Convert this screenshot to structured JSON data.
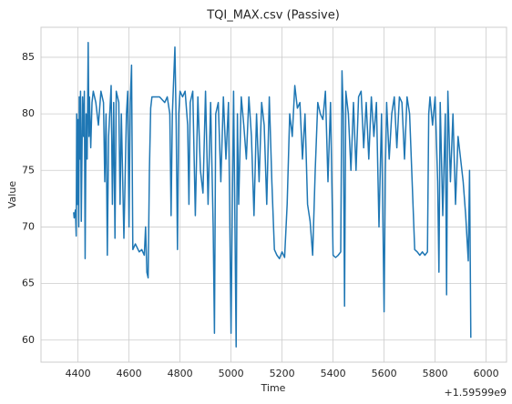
{
  "chart_data": {
    "type": "line",
    "title": "TQI_MAX.csv (Passive)",
    "x_label": "Time",
    "y_label": "Value",
    "x_offset_label": "+1.59599e9",
    "xlim": [
      4255,
      6080
    ],
    "ylim": [
      58.05,
      87.65
    ],
    "xticks": [
      4400,
      4600,
      4800,
      5000,
      5200,
      5400,
      5600,
      5800,
      6000
    ],
    "yticks": [
      60,
      65,
      70,
      75,
      80,
      85
    ],
    "grid": true,
    "x": [
      4383,
      4385,
      4390,
      4393,
      4395,
      4398,
      4400,
      4403,
      4405,
      4408,
      4410,
      4413,
      4418,
      4422,
      4425,
      4428,
      4432,
      4436,
      4440,
      4443,
      4445,
      4450,
      4455,
      4460,
      4470,
      4480,
      4490,
      4500,
      4505,
      4510,
      4515,
      4520,
      4530,
      4535,
      4540,
      4545,
      4550,
      4560,
      4565,
      4570,
      4580,
      4590,
      4595,
      4600,
      4605,
      4610,
      4615,
      4625,
      4640,
      4650,
      4660,
      4665,
      4670,
      4675,
      4680,
      4685,
      4690,
      4700,
      4720,
      4740,
      4750,
      4760,
      4765,
      4770,
      4780,
      4785,
      4790,
      4795,
      4800,
      4810,
      4820,
      4830,
      4835,
      4840,
      4850,
      4860,
      4870,
      4880,
      4890,
      4900,
      4910,
      4920,
      4930,
      4935,
      4940,
      4950,
      4960,
      4970,
      4980,
      4990,
      5000,
      5005,
      5010,
      5015,
      5020,
      5025,
      5030,
      5040,
      5050,
      5060,
      5070,
      5080,
      5090,
      5100,
      5110,
      5120,
      5130,
      5140,
      5150,
      5160,
      5170,
      5180,
      5190,
      5200,
      5210,
      5220,
      5230,
      5240,
      5250,
      5260,
      5270,
      5280,
      5290,
      5300,
      5310,
      5315,
      5320,
      5330,
      5340,
      5350,
      5360,
      5370,
      5380,
      5390,
      5400,
      5410,
      5420,
      5430,
      5435,
      5440,
      5445,
      5450,
      5460,
      5470,
      5480,
      5490,
      5500,
      5510,
      5520,
      5530,
      5540,
      5550,
      5560,
      5570,
      5580,
      5590,
      5600,
      5605,
      5610,
      5620,
      5630,
      5640,
      5650,
      5660,
      5670,
      5680,
      5690,
      5700,
      5710,
      5720,
      5730,
      5740,
      5750,
      5760,
      5770,
      5775,
      5780,
      5790,
      5800,
      5810,
      5815,
      5820,
      5830,
      5840,
      5845,
      5850,
      5860,
      5870,
      5880,
      5890,
      5900,
      5910,
      5920,
      5930,
      5935,
      5938,
      5940
    ],
    "series": [
      {
        "name": "Value",
        "color": "#1f77b4",
        "values": [
          71.3,
          70.8,
          71.5,
          69.2,
          80,
          72,
          79.5,
          70,
          81.5,
          76,
          82,
          70.5,
          81.5,
          78,
          82,
          67.2,
          80,
          76,
          86.3,
          78,
          81.5,
          77,
          81,
          82,
          81,
          79,
          82,
          81,
          74,
          80,
          67.5,
          78,
          82.5,
          72,
          81,
          69,
          82,
          81,
          72,
          80,
          69,
          80,
          82,
          70,
          81,
          84.3,
          68,
          68.5,
          67.8,
          68,
          67.5,
          70,
          66,
          65.5,
          75,
          80.5,
          81.5,
          81.5,
          81.5,
          81,
          81.5,
          80,
          71,
          80,
          85.9,
          79,
          68,
          80,
          82,
          81.5,
          82,
          79,
          72,
          81,
          82,
          71,
          81.5,
          75,
          73,
          82,
          72,
          81,
          70,
          60.6,
          80,
          81,
          74,
          81.5,
          76,
          81,
          60.6,
          72,
          82,
          71,
          59.4,
          80,
          72,
          81.5,
          79,
          76,
          81.5,
          78,
          71,
          80,
          74,
          81,
          79,
          72,
          81.5,
          74,
          68,
          67.5,
          67.2,
          67.8,
          67.3,
          72,
          80,
          78,
          82.5,
          80.5,
          81,
          76,
          80,
          72,
          70.5,
          69,
          67.5,
          75,
          81,
          80,
          79.5,
          82,
          74,
          81,
          67.5,
          67.3,
          67.5,
          67.8,
          83.8,
          80,
          63,
          82,
          80,
          75,
          81,
          75,
          81.5,
          82,
          77,
          81,
          76,
          81.5,
          78,
          81,
          70,
          80,
          62.5,
          75,
          81,
          76,
          80,
          81.5,
          77,
          81.5,
          81,
          76,
          81.5,
          80,
          74,
          68,
          67.8,
          67.5,
          67.8,
          67.5,
          67.8,
          80,
          81.5,
          79,
          81.5,
          74,
          66,
          81,
          71,
          80,
          64,
          82,
          74,
          80,
          72,
          78,
          76,
          74,
          71,
          67,
          75,
          66.4,
          60.2
        ]
      }
    ]
  }
}
